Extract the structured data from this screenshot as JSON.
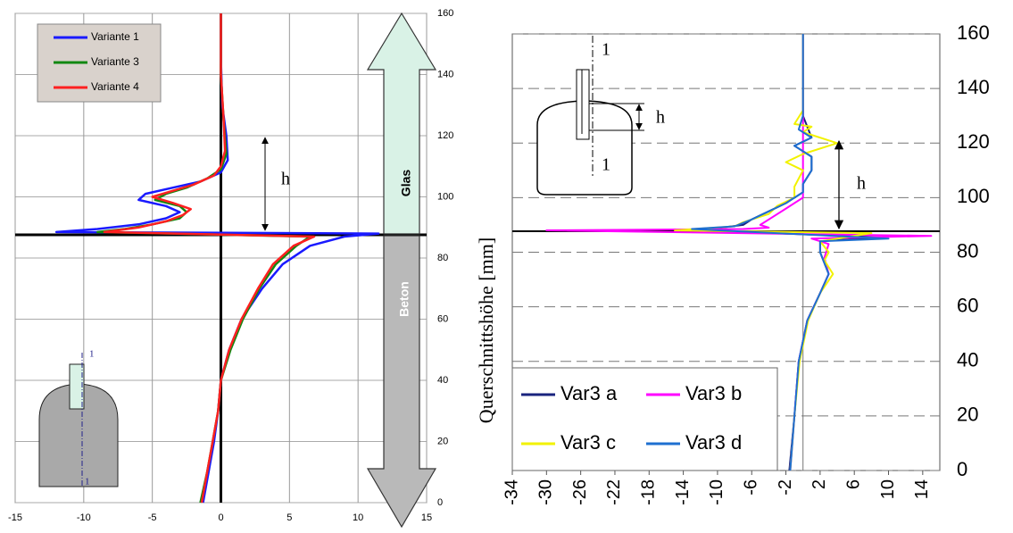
{
  "chart_data": [
    {
      "type": "line",
      "xlim": [
        -15,
        15
      ],
      "xticks": [
        -15,
        -10,
        -5,
        0,
        5,
        10,
        15
      ],
      "ylim": [
        0,
        160
      ],
      "yticks": [
        0,
        20,
        40,
        60,
        80,
        100,
        120,
        140,
        160
      ],
      "grid": "both",
      "legend": "upper left",
      "annotations": [
        "h",
        "Glas",
        "Beton",
        "1",
        "1"
      ],
      "series": [
        {
          "name": "Variante 1",
          "color": "#1a1aff",
          "x": [
            -1.3,
            -0.9,
            -0.5,
            -0.2,
            0,
            0.6,
            1.5,
            3,
            4.5,
            6.5,
            9,
            11.5,
            -12,
            -9,
            -6,
            -4,
            -3,
            -4,
            -6,
            -5.5,
            -3.5,
            -1.5,
            0,
            0.5,
            0.4,
            0.1,
            0,
            0
          ],
          "values": [
            0,
            10,
            20,
            30,
            40,
            50,
            60,
            70,
            78,
            84,
            87,
            88,
            88.5,
            89.5,
            91,
            93,
            95,
            97,
            99,
            101,
            103,
            105,
            108,
            112,
            120,
            130,
            145,
            160
          ]
        },
        {
          "name": "Variante 3",
          "color": "#118811",
          "x": [
            -1.5,
            -1,
            -0.6,
            -0.2,
            0,
            0.7,
            1.6,
            2.8,
            4,
            5.5,
            6.5,
            -9,
            -7,
            -5,
            -3,
            -2.5,
            -3,
            -4.8,
            -4,
            -2.5,
            -1,
            0,
            0.4,
            0.2,
            0,
            0
          ],
          "values": [
            0,
            10,
            20,
            30,
            40,
            50,
            60,
            70,
            78,
            84,
            87,
            88.5,
            89.5,
            91,
            93,
            95,
            97,
            99,
            101,
            103,
            106,
            109,
            114,
            125,
            140,
            160
          ]
        },
        {
          "name": "Variante 4",
          "color": "#ff2020",
          "x": [
            -1.4,
            -1,
            -0.6,
            -0.2,
            0,
            0.6,
            1.5,
            2.7,
            3.8,
            5.3,
            6.8,
            -8.5,
            -6,
            -4,
            -2.8,
            -2.2,
            -3.5,
            -5,
            -3.5,
            -2,
            -0.5,
            0,
            0.3,
            0.2,
            0,
            0
          ],
          "values": [
            0,
            10,
            20,
            30,
            40,
            50,
            60,
            70,
            78,
            84,
            87,
            88.5,
            90,
            92,
            94,
            96,
            98,
            100,
            102,
            104,
            107,
            110,
            115,
            125,
            140,
            160
          ]
        }
      ]
    },
    {
      "type": "line",
      "ylabel": "Querschnittshöhe [mm]",
      "xlim": [
        -34,
        16
      ],
      "xticks": [
        -34,
        -30,
        -26,
        -22,
        -18,
        -14,
        -10,
        -6,
        -2,
        2,
        6,
        10,
        14
      ],
      "ylim": [
        0,
        160
      ],
      "yticks": [
        0,
        20,
        40,
        60,
        80,
        100,
        120,
        140,
        160
      ],
      "grid": "y",
      "legend": "lower left",
      "annotations": [
        "1",
        "1",
        "h",
        "h"
      ],
      "series": [
        {
          "name": "Var3 a",
          "color": "#1a237e",
          "x": [
            -1.6,
            -1,
            -0.5,
            0.5,
            2,
            3,
            2.5,
            2,
            2,
            9,
            -12,
            -7,
            -6,
            -4,
            -2,
            0,
            0,
            1,
            1,
            -1,
            1,
            0,
            0
          ],
          "values": [
            0,
            20,
            40,
            55,
            65,
            72,
            76,
            80,
            84,
            85.5,
            88,
            90,
            92,
            95,
            98,
            102,
            105,
            110,
            115,
            119,
            122,
            130,
            160
          ]
        },
        {
          "name": "Var3 b",
          "color": "#ff00ff",
          "x": [
            -1.5,
            -1,
            -0.5,
            0.5,
            2,
            3,
            2.5,
            3,
            1,
            15,
            -30,
            -7,
            -4,
            -5,
            -4,
            -2,
            0,
            0
          ],
          "values": [
            0,
            20,
            40,
            55,
            65,
            72,
            78,
            83,
            85,
            86,
            88,
            88.5,
            89,
            90,
            92,
            96,
            100,
            160
          ]
        },
        {
          "name": "Var3 c",
          "color": "#f2f200",
          "x": [
            -1.5,
            -1,
            -0.4,
            0.6,
            2,
            3.5,
            2.5,
            3,
            2,
            8,
            -15,
            -8,
            -7,
            -4,
            -3,
            -1,
            -1,
            0,
            -2,
            0,
            4,
            0,
            1,
            -1,
            0,
            0
          ],
          "values": [
            0,
            20,
            40,
            55,
            65,
            72,
            77,
            80,
            84,
            87,
            88,
            89.5,
            91,
            94,
            97,
            100,
            104,
            110,
            113,
            116,
            120,
            124,
            126,
            127,
            132,
            160
          ]
        },
        {
          "name": "Var3 d",
          "color": "#1e6fd0",
          "x": [
            -1.5,
            -1,
            -0.5,
            0.5,
            2,
            3,
            2.5,
            2,
            2,
            10,
            -13,
            -8,
            -6,
            -4,
            -2,
            0,
            0,
            1,
            1,
            -1,
            1,
            -0.5,
            0,
            0
          ],
          "values": [
            0,
            20,
            40,
            55,
            65,
            72,
            76,
            80,
            84,
            85,
            88.5,
            89.5,
            92,
            95,
            98,
            102,
            105,
            110,
            115,
            119,
            122,
            125,
            130,
            160
          ]
        }
      ]
    }
  ]
}
